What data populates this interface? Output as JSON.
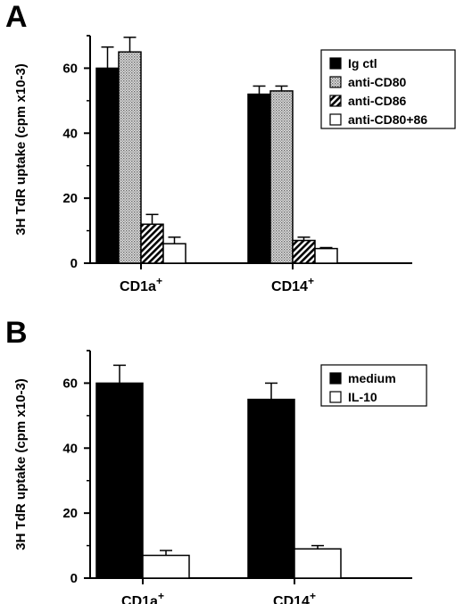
{
  "chart_data": [
    {
      "type": "bar",
      "panel": "A",
      "title": "",
      "ylabel": "3H TdR uptake (cpm x10-3)",
      "xlabel": "",
      "ylim": [
        0,
        70
      ],
      "yticks": [
        0,
        20,
        40,
        60
      ],
      "categories": [
        "CD1a+",
        "CD14+"
      ],
      "legend_position": "top-right",
      "series": [
        {
          "name": "Ig ctl",
          "fill": "solid",
          "color": "#000000",
          "values": [
            60,
            52
          ],
          "errors": [
            6.5,
            2.5
          ]
        },
        {
          "name": "anti-CD80",
          "fill": "dots",
          "color": "#bdbdbd",
          "values": [
            65,
            53
          ],
          "errors": [
            4.5,
            1.5
          ]
        },
        {
          "name": "anti-CD86",
          "fill": "hatch",
          "color": "#000000",
          "values": [
            12,
            7
          ],
          "errors": [
            3,
            1
          ]
        },
        {
          "name": "anti-CD80+86",
          "fill": "open",
          "color": "#ffffff",
          "values": [
            6,
            4.5
          ],
          "errors": [
            2,
            0.3
          ]
        }
      ]
    },
    {
      "type": "bar",
      "panel": "B",
      "title": "",
      "ylabel": "3H TdR uptake (cpm x10-3)",
      "xlabel": "",
      "ylim": [
        0,
        70
      ],
      "yticks": [
        0,
        20,
        40,
        60
      ],
      "categories": [
        "CD1a+",
        "CD14+"
      ],
      "legend_position": "top-right",
      "series": [
        {
          "name": "medium",
          "fill": "solid",
          "color": "#000000",
          "values": [
            60,
            55
          ],
          "errors": [
            5.5,
            5
          ]
        },
        {
          "name": "IL-10",
          "fill": "open",
          "color": "#ffffff",
          "values": [
            7,
            9
          ],
          "errors": [
            1.5,
            1
          ]
        }
      ]
    }
  ]
}
